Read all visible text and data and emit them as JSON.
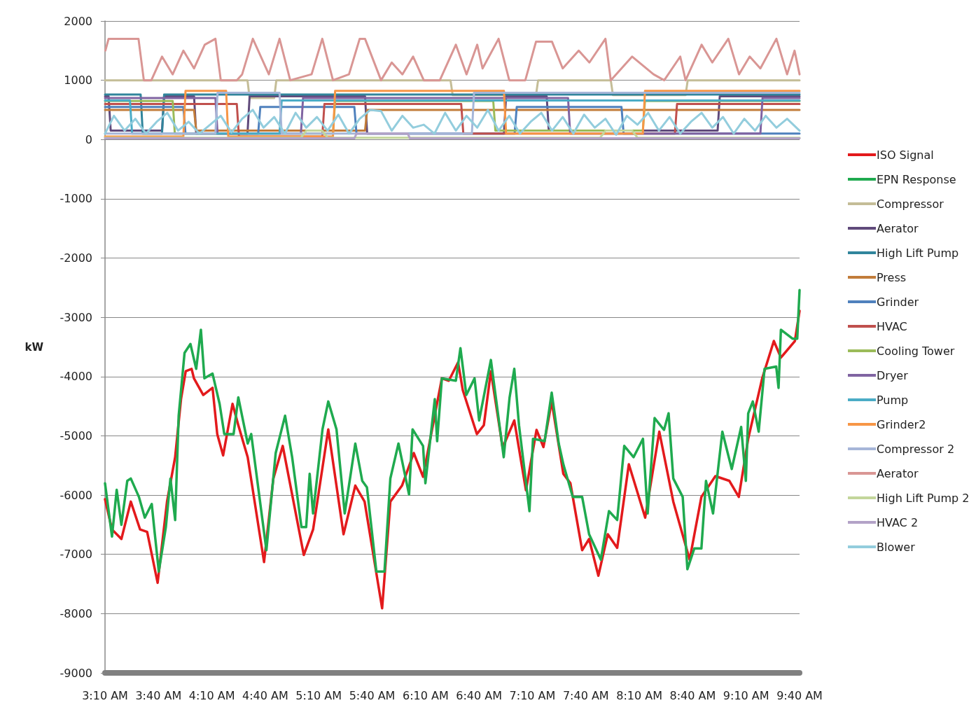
{
  "chart_data": {
    "type": "line",
    "ylabel": "kW",
    "ylim": [
      -9000,
      2000
    ],
    "yticks": [
      -9000,
      -8000,
      -7000,
      -6000,
      -5000,
      -4000,
      -3000,
      -2000,
      -1000,
      0,
      1000,
      2000
    ],
    "xlim": [
      3.1667,
      9.6667
    ],
    "xticks": [
      {
        "value": 3.1667,
        "label": "3:10 AM"
      },
      {
        "value": 3.6667,
        "label": "3:40 AM"
      },
      {
        "value": 4.1667,
        "label": "4:10 AM"
      },
      {
        "value": 4.6667,
        "label": "4:40 AM"
      },
      {
        "value": 5.1667,
        "label": "5:10 AM"
      },
      {
        "value": 5.6667,
        "label": "5:40 AM"
      },
      {
        "value": 6.1667,
        "label": "6:10 AM"
      },
      {
        "value": 6.6667,
        "label": "6:40 AM"
      },
      {
        "value": 7.1667,
        "label": "7:10 AM"
      },
      {
        "value": 7.6667,
        "label": "7:40 AM"
      },
      {
        "value": 8.1667,
        "label": "8:10 AM"
      },
      {
        "value": 8.6667,
        "label": "8:40 AM"
      },
      {
        "value": 9.1667,
        "label": "9:10 AM"
      },
      {
        "value": 9.6667,
        "label": "9:40 AM"
      }
    ],
    "grid": "y",
    "legend": "right",
    "marker": "none",
    "line_style": "solid",
    "series": [
      {
        "name": "ISO Signal",
        "color": "#e31a1c",
        "x": [
          3.1667,
          3.232,
          3.32,
          3.408,
          3.495,
          3.561,
          3.659,
          3.747,
          3.823,
          3.878,
          3.922,
          3.977,
          3.999,
          4.086,
          4.173,
          4.217,
          4.272,
          4.36,
          4.414,
          4.502,
          4.655,
          4.742,
          4.83,
          5.027,
          5.114,
          5.256,
          5.399,
          5.509,
          5.596,
          5.76,
          5.837,
          5.946,
          6.056,
          6.143,
          6.319,
          6.384,
          6.471,
          6.515,
          6.647,
          6.712,
          6.778,
          6.888,
          6.997,
          7.106,
          7.205,
          7.27,
          7.347,
          7.456,
          7.522,
          7.632,
          7.697,
          7.784,
          7.872,
          7.96,
          8.069,
          8.222,
          8.354,
          8.485,
          8.638,
          8.748,
          8.879,
          9.01,
          9.098,
          9.186,
          9.317,
          9.426,
          9.492,
          9.623,
          9.6667
        ],
        "values": [
          -6070,
          -6580,
          -6740,
          -6110,
          -6580,
          -6620,
          -7480,
          -6110,
          -5360,
          -4380,
          -3910,
          -3870,
          -4030,
          -4310,
          -4190,
          -4970,
          -5330,
          -4460,
          -4820,
          -5360,
          -7130,
          -5720,
          -5170,
          -7010,
          -6580,
          -4890,
          -6660,
          -5840,
          -6110,
          -7910,
          -6110,
          -5840,
          -5290,
          -5690,
          -4030,
          -4070,
          -3760,
          -4230,
          -4970,
          -4820,
          -3910,
          -5200,
          -4740,
          -5920,
          -4900,
          -5190,
          -4420,
          -5640,
          -5800,
          -6930,
          -6740,
          -7360,
          -6660,
          -6890,
          -5480,
          -6380,
          -4930,
          -6110,
          -7090,
          -6030,
          -5680,
          -5760,
          -6030,
          -5050,
          -4030,
          -3400,
          -3680,
          -3400,
          -2890
        ]
      },
      {
        "name": "EPN Response",
        "color": "#1faa4f",
        "x": [
          3.1667,
          3.232,
          3.276,
          3.32,
          3.375,
          3.408,
          3.484,
          3.539,
          3.604,
          3.626,
          3.67,
          3.736,
          3.779,
          3.823,
          3.856,
          3.911,
          3.966,
          4.02,
          4.064,
          4.097,
          4.173,
          4.239,
          4.283,
          4.37,
          4.414,
          4.502,
          4.535,
          4.677,
          4.764,
          4.852,
          4.918,
          5.005,
          5.049,
          5.082,
          5.114,
          5.202,
          5.256,
          5.333,
          5.41,
          5.509,
          5.574,
          5.618,
          5.706,
          5.782,
          5.837,
          5.913,
          6.012,
          6.045,
          6.143,
          6.165,
          6.253,
          6.275,
          6.319,
          6.45,
          6.493,
          6.548,
          6.625,
          6.668,
          6.778,
          6.898,
          6.953,
          6.997,
          7.041,
          7.139,
          7.172,
          7.281,
          7.347,
          7.413,
          7.456,
          7.544,
          7.632,
          7.697,
          7.807,
          7.883,
          7.96,
          8.026,
          8.113,
          8.201,
          8.245,
          8.31,
          8.398,
          8.441,
          8.485,
          8.573,
          8.617,
          8.682,
          8.748,
          8.791,
          8.857,
          8.944,
          9.032,
          9.12,
          9.164,
          9.186,
          9.229,
          9.284,
          9.339,
          9.448,
          9.47,
          9.492,
          9.601,
          9.645,
          9.6667
        ],
        "values": [
          -5800,
          -6700,
          -5910,
          -6500,
          -5760,
          -5720,
          -6030,
          -6380,
          -6150,
          -6540,
          -7290,
          -6540,
          -5720,
          -6420,
          -4660,
          -3600,
          -3450,
          -3870,
          -3210,
          -4030,
          -3950,
          -4460,
          -4970,
          -4970,
          -4350,
          -5130,
          -4970,
          -6930,
          -5290,
          -4660,
          -5360,
          -6540,
          -6540,
          -5640,
          -6310,
          -4890,
          -4420,
          -4890,
          -6310,
          -5130,
          -5760,
          -5870,
          -7290,
          -7290,
          -5720,
          -5130,
          -5990,
          -4890,
          -5170,
          -5800,
          -4380,
          -5090,
          -4030,
          -4070,
          -3520,
          -4310,
          -4030,
          -4740,
          -3720,
          -5360,
          -4350,
          -3870,
          -4820,
          -6270,
          -5050,
          -5090,
          -4270,
          -5130,
          -5480,
          -6030,
          -6030,
          -6660,
          -7090,
          -6270,
          -6420,
          -5170,
          -5360,
          -5050,
          -6310,
          -4700,
          -4900,
          -4620,
          -5720,
          -6030,
          -7250,
          -6900,
          -6900,
          -5760,
          -6310,
          -4930,
          -5560,
          -4850,
          -5760,
          -4620,
          -4420,
          -4930,
          -3870,
          -3830,
          -4190,
          -3210,
          -3360,
          -3360,
          -2540
        ]
      },
      {
        "name": "Compressor",
        "color": "#c4bd97",
        "x": [
          3.1667,
          4.5,
          4.52,
          4.75,
          4.77,
          6.4,
          6.42,
          7.2,
          7.22,
          7.9,
          7.92,
          8.6,
          8.62,
          9.6667
        ],
        "values": [
          1000,
          1000,
          700,
          700,
          1000,
          1000,
          750,
          750,
          1000,
          1000,
          750,
          750,
          1000,
          1000
        ]
      },
      {
        "name": "Aerator",
        "color": "#604a7b",
        "x": [
          3.1667,
          3.2,
          3.22,
          3.7,
          3.72,
          4.0,
          4.02,
          4.5,
          4.52,
          5.6,
          5.62,
          6.9,
          6.92,
          7.3,
          7.32,
          8.9,
          8.92,
          9.6667
        ],
        "values": [
          730,
          730,
          150,
          150,
          730,
          730,
          100,
          100,
          730,
          730,
          100,
          100,
          730,
          730,
          150,
          150,
          730,
          730
        ]
      },
      {
        "name": "High Lift Pump",
        "color": "#31859c",
        "x": [
          3.1667,
          3.5,
          3.52,
          3.7,
          3.72,
          5.3,
          5.32,
          6.3,
          6.32,
          9.6667
        ],
        "values": [
          760,
          760,
          100,
          100,
          760,
          760,
          760,
          760,
          760,
          760
        ]
      },
      {
        "name": "Press",
        "color": "#c27c3a",
        "x": [
          3.1667,
          4.0,
          4.02,
          5.6,
          5.62,
          9.6667
        ],
        "values": [
          500,
          500,
          150,
          150,
          500,
          500
        ]
      },
      {
        "name": "Grinder",
        "color": "#4f81bd",
        "x": [
          3.1667,
          3.9,
          3.92,
          4.6,
          4.62,
          5.5,
          5.52,
          7.0,
          7.02,
          8.0,
          8.02,
          9.6667
        ],
        "values": [
          550,
          550,
          100,
          100,
          550,
          550,
          100,
          100,
          550,
          550,
          100,
          100
        ]
      },
      {
        "name": "HVAC",
        "color": "#c0504d",
        "x": [
          3.1667,
          4.4,
          4.42,
          5.2,
          5.22,
          6.5,
          6.52,
          8.5,
          8.52,
          9.6667
        ],
        "values": [
          600,
          600,
          50,
          50,
          600,
          600,
          100,
          100,
          600,
          600
        ]
      },
      {
        "name": "Cooling Tower",
        "color": "#9bbb59",
        "x": [
          3.1667,
          3.8,
          3.82,
          5.3,
          5.32,
          6.8,
          6.82,
          8.2,
          8.22,
          9.6667
        ],
        "values": [
          650,
          650,
          100,
          100,
          650,
          650,
          150,
          150,
          650,
          650
        ]
      },
      {
        "name": "Dryer",
        "color": "#8064a2",
        "x": [
          3.1667,
          4.2,
          4.22,
          5.0,
          5.02,
          7.5,
          7.52,
          9.3,
          9.32,
          9.6667
        ],
        "values": [
          700,
          700,
          100,
          100,
          700,
          700,
          100,
          100,
          700,
          700
        ]
      },
      {
        "name": "Pump",
        "color": "#4bacc6",
        "x": [
          3.1667,
          3.4,
          3.42,
          4.8,
          4.82,
          6.0,
          6.02,
          9.6667
        ],
        "values": [
          660,
          660,
          100,
          100,
          660,
          660,
          660,
          660
        ]
      },
      {
        "name": "Grinder2",
        "color": "#f79646",
        "x": [
          3.1667,
          3.9,
          3.92,
          4.3,
          4.32,
          5.3,
          5.32,
          6.9,
          6.92,
          8.2,
          8.22,
          9.6667
        ],
        "values": [
          50,
          50,
          820,
          820,
          50,
          50,
          820,
          820,
          100,
          100,
          820,
          820
        ]
      },
      {
        "name": "Compressor 2",
        "color": "#a6b6d8",
        "x": [
          3.1667,
          4.2,
          4.22,
          4.8,
          4.82,
          6.6,
          6.62,
          9.6667
        ],
        "values": [
          100,
          100,
          790,
          790,
          100,
          100,
          790,
          790
        ]
      },
      {
        "name": "Aerator",
        "color": "#d99694",
        "x": [
          3.17,
          3.2,
          3.48,
          3.53,
          3.6,
          3.7,
          3.8,
          3.9,
          4.0,
          4.1,
          4.2,
          4.25,
          4.4,
          4.45,
          4.55,
          4.7,
          4.8,
          4.9,
          5.1,
          5.2,
          5.3,
          5.45,
          5.55,
          5.6,
          5.75,
          5.85,
          5.95,
          6.05,
          6.15,
          6.3,
          6.45,
          6.55,
          6.65,
          6.7,
          6.85,
          6.95,
          7.1,
          7.2,
          7.35,
          7.45,
          7.6,
          7.7,
          7.85,
          7.9,
          8.1,
          8.3,
          8.4,
          8.55,
          8.6,
          8.75,
          8.85,
          9.0,
          9.1,
          9.2,
          9.3,
          9.45,
          9.55,
          9.62,
          9.6667
        ],
        "values": [
          1500,
          1700,
          1700,
          1000,
          1000,
          1400,
          1100,
          1500,
          1200,
          1600,
          1700,
          1000,
          1000,
          1100,
          1700,
          1100,
          1700,
          1000,
          1100,
          1700,
          1000,
          1100,
          1700,
          1700,
          1000,
          1300,
          1100,
          1400,
          1000,
          1000,
          1600,
          1100,
          1600,
          1200,
          1700,
          1000,
          1000,
          1650,
          1650,
          1200,
          1500,
          1300,
          1700,
          1000,
          1400,
          1100,
          1000,
          1400,
          1000,
          1600,
          1300,
          1700,
          1100,
          1400,
          1200,
          1700,
          1100,
          1500,
          1100
        ]
      },
      {
        "name": "High Lift Pump 2",
        "color": "#c3d69b",
        "x": [
          3.1667,
          5.0,
          5.05,
          5.2,
          5.25,
          7.8,
          7.85,
          8.1,
          8.15,
          9.6667
        ],
        "values": [
          30,
          30,
          150,
          150,
          30,
          30,
          150,
          150,
          30,
          30
        ]
      },
      {
        "name": "HVAC 2",
        "color": "#b3a2c7",
        "x": [
          3.1667,
          5.5,
          5.52,
          6.0,
          6.02,
          9.6667
        ],
        "values": [
          20,
          20,
          100,
          100,
          20,
          20
        ]
      },
      {
        "name": "Blower",
        "color": "#93cddd",
        "x": [
          3.1667,
          3.25,
          3.35,
          3.45,
          3.55,
          3.65,
          3.75,
          3.85,
          3.95,
          4.05,
          4.15,
          4.25,
          4.35,
          4.45,
          4.55,
          4.65,
          4.75,
          4.85,
          4.95,
          5.05,
          5.15,
          5.25,
          5.35,
          5.45,
          5.55,
          5.65,
          5.75,
          5.85,
          5.95,
          6.05,
          6.15,
          6.25,
          6.35,
          6.45,
          6.55,
          6.65,
          6.75,
          6.85,
          6.95,
          7.05,
          7.15,
          7.25,
          7.35,
          7.45,
          7.55,
          7.65,
          7.75,
          7.85,
          7.95,
          8.05,
          8.15,
          8.25,
          8.35,
          8.45,
          8.55,
          8.65,
          8.75,
          8.85,
          8.95,
          9.05,
          9.15,
          9.25,
          9.35,
          9.45,
          9.55,
          9.6667
        ],
        "values": [
          100,
          400,
          150,
          350,
          100,
          300,
          450,
          150,
          300,
          100,
          250,
          400,
          120,
          350,
          500,
          200,
          380,
          100,
          450,
          200,
          380,
          150,
          420,
          100,
          350,
          500,
          480,
          150,
          400,
          200,
          250,
          100,
          450,
          150,
          400,
          200,
          500,
          150,
          400,
          100,
          300,
          450,
          150,
          380,
          100,
          420,
          200,
          350,
          80,
          400,
          250,
          450,
          150,
          380,
          100,
          300,
          450,
          200,
          380,
          100,
          350,
          150,
          400,
          200,
          350,
          150
        ]
      }
    ]
  }
}
